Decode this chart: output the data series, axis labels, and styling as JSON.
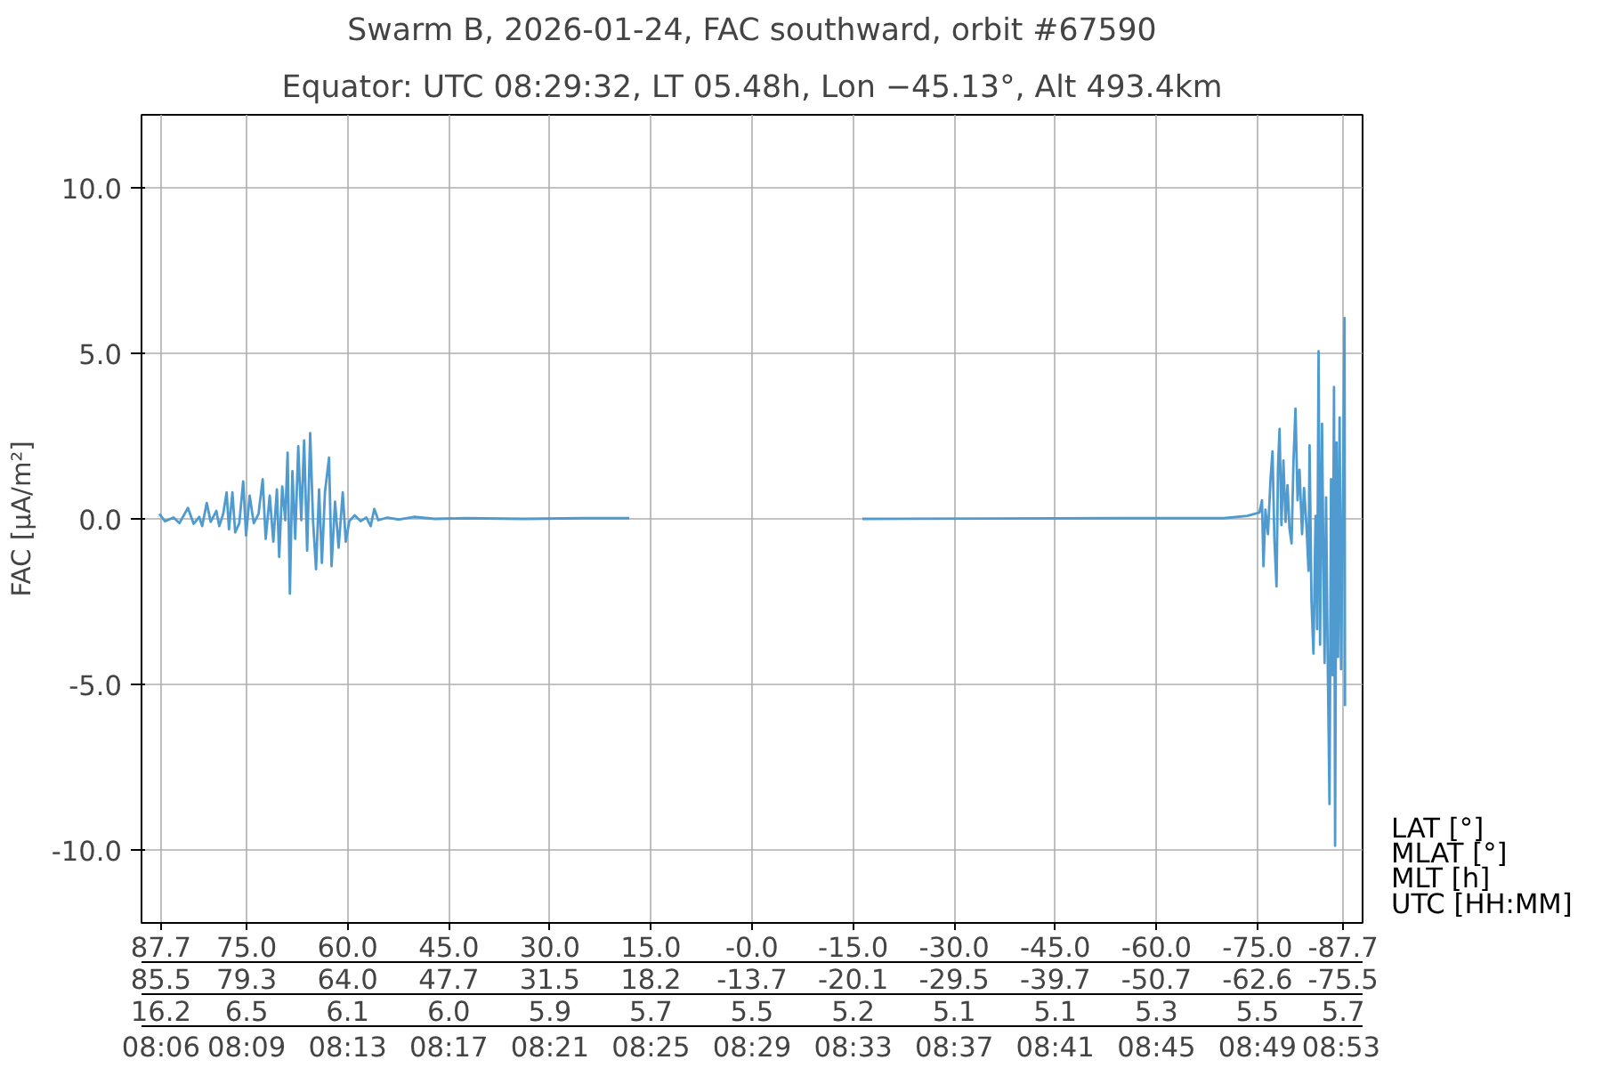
{
  "chart_data": {
    "type": "line",
    "title": "Swarm B, 2026-01-24, FAC southward, orbit #67590",
    "subtitle": "Equator: UTC 08:29:32, LT 05.48h, Lon −45.13°, Alt 493.4km",
    "ylabel": "FAC [μA/m²]",
    "xlabel": "LAT [°]",
    "xlim": [
      90.6,
      -90.6
    ],
    "ylim": [
      -12.2,
      12.2
    ],
    "xticks": [
      87.7,
      {
        "value": 75,
        "label": "75.0"
      },
      {
        "value": 60,
        "label": "60.0"
      },
      {
        "value": 45,
        "label": "45.0"
      },
      {
        "value": 30,
        "label": "30.0"
      },
      {
        "value": 15,
        "label": "15.0"
      },
      {
        "value": 0,
        "label": "-0.0"
      },
      {
        "value": -15,
        "label": "-15.0"
      },
      {
        "value": -30,
        "label": "-30.0"
      },
      {
        "value": -45,
        "label": "-45.0"
      },
      {
        "value": -60,
        "label": "-60.0"
      },
      {
        "value": -75,
        "label": "-75.0"
      },
      -87.7
    ],
    "yticks": [
      {
        "value": -10,
        "label": "-10.0"
      },
      {
        "value": -5,
        "label": "-5.0"
      },
      {
        "value": 0,
        "label": "0.0"
      },
      {
        "value": 5,
        "label": "5.0"
      },
      {
        "value": 10,
        "label": "10.0"
      }
    ],
    "annotations": [
      "MLAT [°]",
      "85.5",
      "79.3",
      "64.0",
      "47.7",
      "31.5",
      "18.2",
      "-13.7",
      "-20.1",
      "-29.5",
      "-39.7",
      "-50.7",
      "-62.6",
      "-75.5",
      "MLT [h]",
      "16.2",
      "6.5",
      "6.1",
      "6.0",
      "5.9",
      "5.7",
      "5.5",
      "5.2",
      "5.1",
      "5.1",
      "5.3",
      "5.5",
      "5.7",
      "UTC [HH:MM]",
      "08:06",
      "08:09",
      "08:13",
      "08:17",
      "08:21",
      "08:25",
      "08:29",
      "08:33",
      "08:37",
      "08:41",
      "08:45",
      "08:49",
      "08:53"
    ],
    "grid": true,
    "marker": "none",
    "line_style": "solid",
    "series": [
      {
        "color": "#4f9bd0",
        "x": [
          87.95,
          87.12,
          85.85,
          84.98,
          83.71,
          82.87,
          82.04,
          81.6,
          80.92,
          80.33,
          79.5,
          79.06,
          78.48,
          77.97,
          77.62,
          77.11,
          76.7,
          76.09,
          75.51,
          75.08,
          74.55,
          73.94,
          73.23,
          72.62,
          72.17,
          71.57,
          71.04,
          70.51,
          70.17,
          69.72,
          69.27,
          68.92,
          68.58,
          68.21,
          67.79,
          67.34,
          66.89,
          66.47,
          66.02,
          65.57,
          65.15,
          64.7,
          64.25,
          63.83,
          63.38,
          62.77,
          62.4,
          61.88,
          61.35,
          60.74,
          60.29,
          59.76,
          58.97,
          58.1,
          57.23,
          56.59,
          56.06,
          55.46,
          54.13,
          52.37,
          50.17,
          47.09,
          42.7,
          33.88,
          25.09,
          18.22,
          10.0,
          -16.37,
          -35.65,
          -54.14,
          -69.98,
          -73.49,
          -75.29,
          -75.67,
          -75.89,
          -76.18,
          -76.56,
          -76.94,
          -77.23,
          -77.52,
          -77.83,
          -78.05,
          -78.28,
          -78.56,
          -78.85,
          -79.17,
          -79.46,
          -79.75,
          -80.06,
          -80.35,
          -80.64,
          -80.95,
          -81.24,
          -81.62,
          -81.91,
          -82.29,
          -82.58,
          -82.73,
          -83.02,
          -83.31,
          -83.62,
          -83.85,
          -84.07,
          -84.29,
          -84.58,
          -84.8,
          -84.96,
          -85.18,
          -85.4,
          -85.69,
          -85.92,
          -86.14,
          -86.36,
          -86.52,
          -86.74,
          -86.96,
          -87.19,
          -87.41,
          -87.7,
          -87.92,
          -87.99
        ],
        "values": [
          0.15,
          -0.07,
          0.04,
          -0.13,
          0.33,
          -0.15,
          0.06,
          -0.22,
          0.48,
          -0.09,
          0.24,
          -0.22,
          0.15,
          0.8,
          -0.31,
          0.8,
          -0.41,
          -0.13,
          1.13,
          -0.5,
          0.7,
          -0.13,
          0.15,
          1.2,
          -0.6,
          0.7,
          -0.69,
          0.89,
          -1.15,
          0.98,
          -0.04,
          2.0,
          -2.26,
          1.44,
          -0.6,
          2.19,
          -0.04,
          2.37,
          -0.96,
          2.59,
          -0.04,
          -1.52,
          0.89,
          -1.33,
          0.8,
          1.85,
          -1.43,
          0.52,
          -0.87,
          0.8,
          -0.69,
          -0.07,
          0.11,
          -0.07,
          0.04,
          -0.22,
          0.3,
          -0.04,
          0.04,
          -0.02,
          0.06,
          0.0,
          0.02,
          0.0,
          0.02,
          0.02,
          null,
          0.0,
          0.01,
          0.02,
          0.02,
          0.09,
          0.19,
          0.56,
          -1.43,
          0.28,
          -0.46,
          1.2,
          2.04,
          -0.65,
          -2.04,
          1.57,
          2.72,
          -0.19,
          1.76,
          -0.09,
          1.02,
          -0.28,
          -0.74,
          1.76,
          3.33,
          0.56,
          1.48,
          -0.46,
          0.93,
          -0.28,
          -1.57,
          2.22,
          -2.5,
          -4.07,
          0.09,
          -3.33,
          5.06,
          -3.8,
          2.87,
          -1.57,
          -4.35,
          0.65,
          -3.8,
          -8.61,
          1.2,
          -4.72,
          3.98,
          -9.87,
          2.31,
          -4.17,
          3.06,
          -4.54,
          1.02,
          6.06,
          -5.65
        ]
      }
    ]
  }
}
